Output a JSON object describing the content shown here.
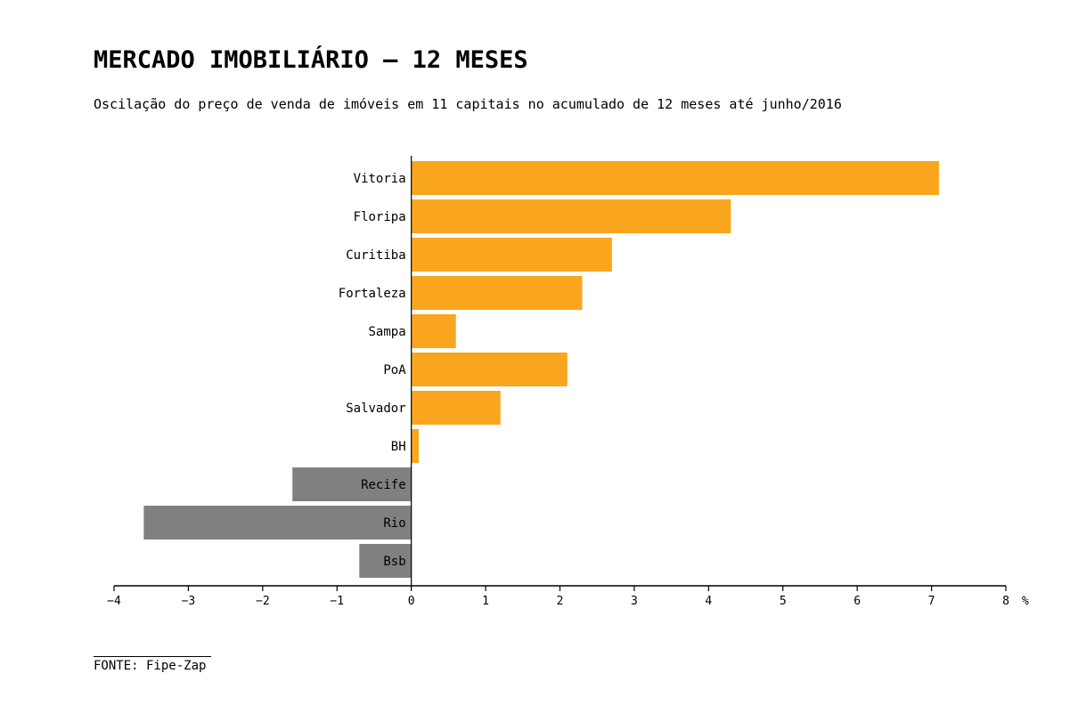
{
  "title": "MERCADO IMOBILIÁRIO – 12 MESES",
  "subtitle": "Oscilação do preço de venda de imóveis em 11 capitais no acumulado de 12 meses até junho/2016",
  "source": "FONTE: Fipe-Zap",
  "chart_data": {
    "type": "bar",
    "orientation": "horizontal",
    "categories": [
      "Vitoria",
      "Floripa",
      "Curitiba",
      "Fortaleza",
      "Sampa",
      "PoA",
      "Salvador",
      "BH",
      "Recife",
      "Rio",
      "Bsb"
    ],
    "values": [
      7.1,
      4.3,
      2.7,
      2.3,
      0.6,
      2.1,
      1.2,
      0.1,
      -1.6,
      -3.6,
      -0.7
    ],
    "xlim": [
      -4,
      8
    ],
    "xticks": [
      -4,
      -3,
      -2,
      -1,
      0,
      1,
      2,
      3,
      4,
      5,
      6,
      7,
      8
    ],
    "xtick_labels": [
      "−4",
      "−3",
      "−2",
      "−1",
      "0",
      "1",
      "2",
      "3",
      "4",
      "5",
      "6",
      "7",
      "8"
    ],
    "unit_label": "%",
    "grid": false,
    "colors": {
      "positive": "#f9a61e",
      "negative": "#808080",
      "axis": "#000000"
    }
  }
}
